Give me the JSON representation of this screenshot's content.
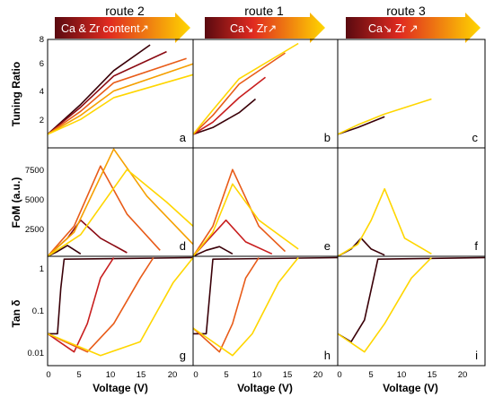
{
  "header": {
    "routes": [
      {
        "label": "route 2",
        "arrow_text": "Ca & Zr content↗"
      },
      {
        "label": "route 1",
        "arrow_text": "Ca↘   Zr↗"
      },
      {
        "label": "route 3",
        "arrow_text": "Ca↘  Zr ↗"
      }
    ],
    "gradient": {
      "start": "#5a0a10",
      "mid": "#e02a20",
      "end": "#ffd700"
    }
  },
  "axes": {
    "xlabel": "Voltage (V)",
    "x_ticks": [
      "0",
      "5",
      "10",
      "15",
      "20"
    ],
    "rows": [
      {
        "ylabel": "Tuning Ratio",
        "y_ticks": [
          "2",
          "4",
          "6",
          "8"
        ]
      },
      {
        "ylabel": "FoM (a.u.)",
        "y_ticks": [
          "2500",
          "5000",
          "7500"
        ]
      },
      {
        "ylabel": "Tan δ",
        "y_ticks": [
          "0.01",
          "0.1",
          "1"
        ]
      }
    ]
  },
  "chart_data": [
    {
      "panel": "a",
      "route": "route 2",
      "type": "line",
      "xlim": [
        0,
        22
      ],
      "ylim": [
        0,
        8
      ],
      "ylabel": "Tuning Ratio",
      "series": [
        {
          "x": [
            0,
            5,
            10,
            15.5
          ],
          "values": [
            1,
            3.2,
            5.7,
            7.6
          ]
        },
        {
          "x": [
            0,
            5,
            10,
            18
          ],
          "values": [
            1,
            3.0,
            5.3,
            7.1
          ]
        },
        {
          "x": [
            0,
            5,
            10,
            21
          ],
          "values": [
            1,
            2.7,
            4.8,
            6.6
          ]
        },
        {
          "x": [
            0,
            5,
            10,
            22
          ],
          "values": [
            1,
            2.4,
            4.2,
            6.2
          ]
        },
        {
          "x": [
            0,
            5,
            10,
            22
          ],
          "values": [
            1,
            2.1,
            3.7,
            5.4
          ]
        }
      ]
    },
    {
      "panel": "b",
      "route": "route 1",
      "type": "line",
      "xlim": [
        0,
        22
      ],
      "ylim": [
        0,
        8
      ],
      "ylabel": "Tuning Ratio",
      "series": [
        {
          "x": [
            0,
            3,
            7,
            9.5
          ],
          "values": [
            1,
            1.5,
            2.6,
            3.6
          ]
        },
        {
          "x": [
            0,
            3,
            7,
            11
          ],
          "values": [
            1,
            1.9,
            3.7,
            5.2
          ]
        },
        {
          "x": [
            0,
            3,
            7,
            14
          ],
          "values": [
            1,
            2.4,
            4.7,
            7.0
          ]
        },
        {
          "x": [
            0,
            3,
            7,
            16
          ],
          "values": [
            1,
            2.8,
            5.1,
            7.7
          ]
        }
      ]
    },
    {
      "panel": "c",
      "route": "route 3",
      "type": "line",
      "xlim": [
        0,
        22
      ],
      "ylim": [
        0,
        8
      ],
      "ylabel": "Tuning Ratio",
      "series": [
        {
          "x": [
            0,
            3,
            7
          ],
          "values": [
            1,
            1.5,
            2.3
          ]
        },
        {
          "x": [
            0,
            3,
            7,
            14
          ],
          "values": [
            1,
            1.7,
            2.5,
            3.6
          ]
        }
      ]
    },
    {
      "panel": "d",
      "route": "route 2",
      "type": "line",
      "xlim": [
        0,
        22
      ],
      "ylim": [
        0,
        9000
      ],
      "ylabel": "FoM (a.u.)",
      "series": [
        {
          "x": [
            0,
            1.5,
            3,
            5
          ],
          "values": [
            0,
            400,
            900,
            200
          ]
        },
        {
          "x": [
            0,
            3,
            5,
            8,
            12
          ],
          "values": [
            0,
            1500,
            3000,
            1500,
            300
          ]
        },
        {
          "x": [
            0,
            4,
            8,
            12,
            17
          ],
          "values": [
            0,
            2500,
            7500,
            3500,
            500
          ]
        },
        {
          "x": [
            0,
            4,
            10,
            15,
            22
          ],
          "values": [
            0,
            2000,
            8900,
            5000,
            1000
          ]
        },
        {
          "x": [
            0,
            5,
            12,
            18,
            22
          ],
          "values": [
            0,
            1800,
            7200,
            4500,
            2500
          ]
        }
      ]
    },
    {
      "panel": "e",
      "route": "route 1",
      "type": "line",
      "xlim": [
        0,
        22
      ],
      "ylim": [
        0,
        9000
      ],
      "ylabel": "FoM (a.u.)",
      "series": [
        {
          "x": [
            0,
            2,
            4,
            6
          ],
          "values": [
            0,
            500,
            800,
            200
          ]
        },
        {
          "x": [
            0,
            2,
            5,
            8,
            12
          ],
          "values": [
            0,
            1200,
            3000,
            1200,
            200
          ]
        },
        {
          "x": [
            0,
            3,
            6,
            10,
            14
          ],
          "values": [
            0,
            2500,
            7200,
            2500,
            400
          ]
        },
        {
          "x": [
            0,
            3,
            6,
            10,
            16
          ],
          "values": [
            0,
            2000,
            6000,
            3000,
            600
          ]
        }
      ]
    },
    {
      "panel": "f",
      "route": "route 3",
      "type": "line",
      "xlim": [
        0,
        22
      ],
      "ylim": [
        0,
        9000
      ],
      "ylabel": "FoM (a.u.)",
      "series": [
        {
          "x": [
            0,
            2,
            3.5,
            5,
            7
          ],
          "values": [
            0,
            600,
            1500,
            600,
            100
          ]
        },
        {
          "x": [
            0,
            3,
            5,
            7,
            10,
            14
          ],
          "values": [
            0,
            1000,
            3000,
            5600,
            1500,
            200
          ]
        }
      ]
    },
    {
      "panel": "g",
      "route": "route 2",
      "type": "line",
      "xlim": [
        0,
        22
      ],
      "ylim": [
        0.006,
        1.5
      ],
      "yscale": "log",
      "ylabel": "Tan δ",
      "series": [
        {
          "x": [
            0,
            1.5,
            2,
            2.5,
            22
          ],
          "values": [
            0.03,
            0.03,
            0.3,
            1.3,
            1.4
          ]
        },
        {
          "x": [
            0,
            4,
            6,
            8,
            10
          ],
          "values": [
            0.03,
            0.012,
            0.05,
            0.5,
            1.4
          ]
        },
        {
          "x": [
            0,
            6,
            10,
            14,
            16
          ],
          "values": [
            0.03,
            0.012,
            0.05,
            0.5,
            1.4
          ]
        },
        {
          "x": [
            0,
            8,
            14,
            19,
            22
          ],
          "values": [
            0.03,
            0.01,
            0.02,
            0.4,
            1.4
          ]
        }
      ]
    },
    {
      "panel": "h",
      "route": "route 1",
      "type": "line",
      "xlim": [
        0,
        22
      ],
      "ylim": [
        0.006,
        1.5
      ],
      "yscale": "log",
      "ylabel": "Tan δ",
      "series": [
        {
          "x": [
            0,
            2,
            3,
            22
          ],
          "values": [
            0.03,
            0.03,
            1.3,
            1.4
          ]
        },
        {
          "x": [
            0,
            4,
            6,
            8,
            10
          ],
          "values": [
            0.04,
            0.012,
            0.05,
            0.5,
            1.4
          ]
        },
        {
          "x": [
            0,
            6,
            9,
            13,
            16
          ],
          "values": [
            0.04,
            0.01,
            0.03,
            0.4,
            1.4
          ]
        }
      ]
    },
    {
      "panel": "i",
      "route": "route 3",
      "type": "line",
      "xlim": [
        0,
        22
      ],
      "ylim": [
        0.006,
        1.5
      ],
      "yscale": "log",
      "ylabel": "Tan δ",
      "series": [
        {
          "x": [
            0,
            2,
            4,
            6,
            22
          ],
          "values": [
            0.03,
            0.02,
            0.06,
            1.3,
            1.4
          ]
        },
        {
          "x": [
            0,
            4,
            7,
            11,
            14
          ],
          "values": [
            0.03,
            0.012,
            0.05,
            0.5,
            1.4
          ]
        }
      ]
    }
  ]
}
